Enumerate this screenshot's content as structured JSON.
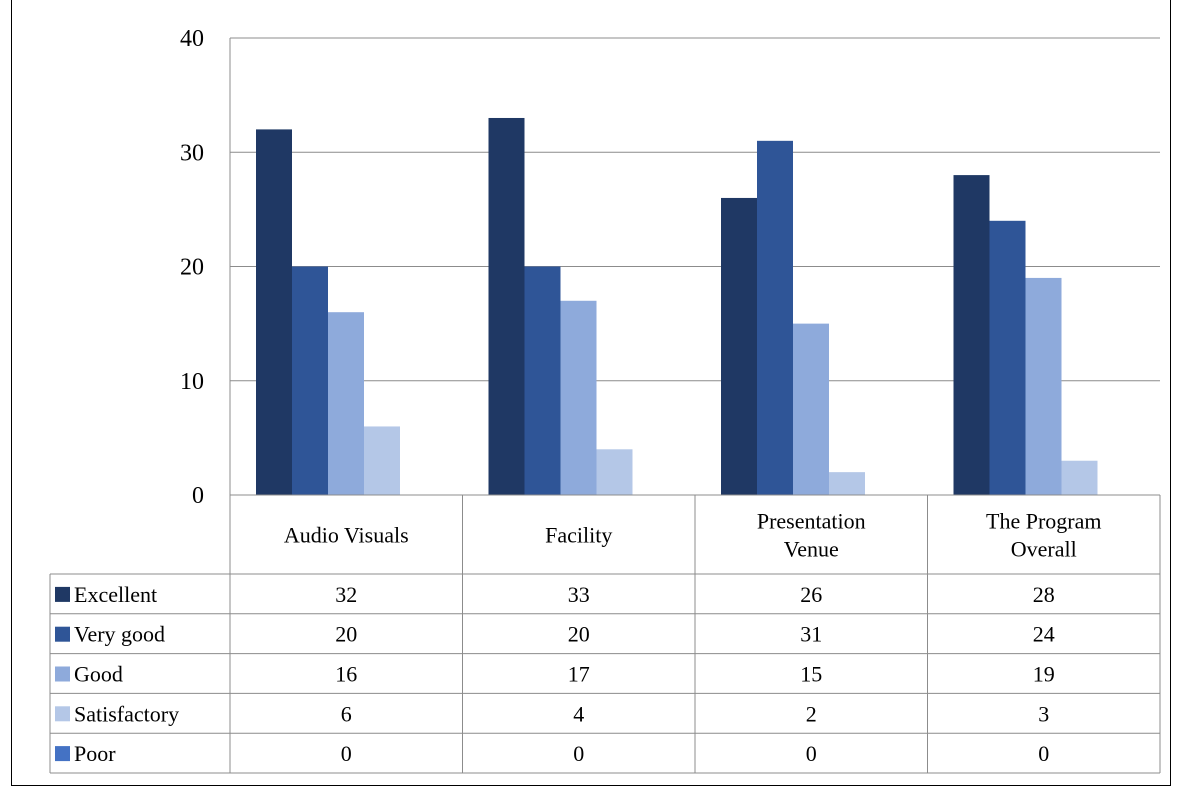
{
  "chart_data": {
    "type": "bar",
    "title": "",
    "xlabel": "",
    "ylabel": "",
    "ylim": [
      0,
      40
    ],
    "yticks": [
      0,
      10,
      20,
      30,
      40
    ],
    "grid": true,
    "legend": "data-table-left",
    "categories": [
      [
        "Audio Visuals"
      ],
      [
        "Facility"
      ],
      [
        "Presentation",
        "Venue"
      ],
      [
        "The Program",
        "Overall"
      ]
    ],
    "series": [
      {
        "name": "Excellent",
        "color": "#1f3864",
        "values": [
          32,
          33,
          26,
          28
        ]
      },
      {
        "name": "Very good",
        "color": "#2f5597",
        "values": [
          20,
          20,
          31,
          24
        ]
      },
      {
        "name": "Good",
        "color": "#8eaadb",
        "values": [
          16,
          17,
          15,
          19
        ]
      },
      {
        "name": "Satisfactory",
        "color": "#b4c7e7",
        "values": [
          6,
          4,
          2,
          3
        ]
      },
      {
        "name": "Poor",
        "color": "#4472c4",
        "values": [
          0,
          0,
          0,
          0
        ]
      }
    ]
  }
}
